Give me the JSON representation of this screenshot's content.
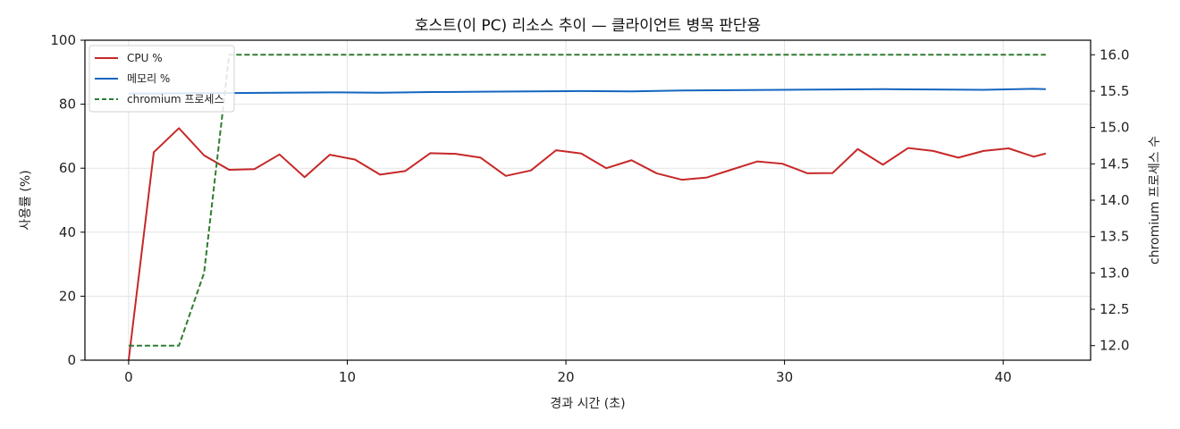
{
  "chart_data": {
    "type": "line",
    "title": "호스트(이 PC) 리소스 추이 — 클라이언트 병목 판단용",
    "xlabel": "경과 시간 (초)",
    "ylabel": "사용률 (%)",
    "y2label": "chromium 프로세스 수",
    "xlim": [
      -2,
      44
    ],
    "ylim": [
      0,
      100
    ],
    "y2lim": [
      11.8,
      16.2
    ],
    "xticks": [
      0,
      10,
      20,
      30,
      40
    ],
    "yticks": [
      0,
      20,
      40,
      60,
      80,
      100
    ],
    "y2ticks": [
      12.0,
      12.5,
      13.0,
      13.5,
      14.0,
      14.5,
      15.0,
      15.5,
      16.0
    ],
    "grid": true,
    "legend_position": "top-left",
    "series": [
      {
        "name": "CPU %",
        "axis": "left",
        "color": "#c62828",
        "style": "solid",
        "x": [
          0,
          1.15,
          2.3,
          3.45,
          4.6,
          5.75,
          6.9,
          8.05,
          9.2,
          10.35,
          11.5,
          12.65,
          13.8,
          14.95,
          16.1,
          17.25,
          18.4,
          19.55,
          20.7,
          21.85,
          23.0,
          24.15,
          25.3,
          26.45,
          27.6,
          28.75,
          29.9,
          31.05,
          32.2,
          33.35,
          34.5,
          35.65,
          36.8,
          37.95,
          39.1,
          40.25,
          41.4,
          41.95
        ],
        "values": [
          0,
          65,
          72.5,
          64,
          59.5,
          59.7,
          64.3,
          57.2,
          64.2,
          62.7,
          58,
          59.1,
          64.7,
          64.5,
          63.3,
          57.6,
          59.3,
          65.6,
          64.6,
          60,
          62.5,
          58.4,
          56.4,
          57.1,
          59.6,
          62.1,
          61.4,
          58.4,
          58.5,
          66,
          61.1,
          66.3,
          65.4,
          63.3,
          65.4,
          66.2,
          63.6,
          64.6
        ]
      },
      {
        "name": "메모리 %",
        "axis": "left",
        "color": "#1565c0",
        "style": "solid",
        "x": [
          0,
          2.3,
          4.6,
          6.9,
          9.2,
          11.5,
          13.8,
          16.1,
          18.4,
          20.7,
          23.0,
          25.3,
          27.6,
          29.9,
          32.2,
          34.5,
          36.8,
          39.1,
          41.4,
          41.95
        ],
        "values": [
          83.3,
          83.4,
          83.5,
          83.6,
          83.7,
          83.6,
          83.8,
          83.9,
          84.0,
          84.1,
          84.0,
          84.3,
          84.4,
          84.5,
          84.6,
          84.7,
          84.6,
          84.5,
          84.8,
          84.7
        ]
      },
      {
        "name": "chromium 프로세스",
        "axis": "right",
        "color": "#2e7d32",
        "style": "dashed",
        "x": [
          0,
          2.3,
          3.45,
          4.6,
          41.95
        ],
        "values": [
          12,
          12,
          13,
          16,
          16
        ]
      }
    ]
  }
}
